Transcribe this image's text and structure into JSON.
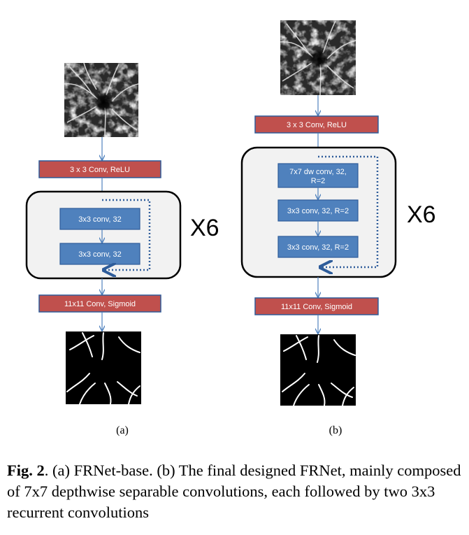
{
  "panel_a": {
    "top_block": "3 x 3 Conv, ReLU",
    "inner_block_1": "3x3 conv, 32",
    "inner_block_2": "3x3 conv, 32",
    "repeat_label": "X6",
    "bottom_block": "11x11 Conv, Sigmoid",
    "sublabel": "(a)"
  },
  "panel_b": {
    "top_block": "3 x 3 Conv, ReLU",
    "inner_block_1_line1": "7x7 dw conv, 32,",
    "inner_block_1_line2": "R=2",
    "inner_block_2": "3x3 conv, 32, R=2",
    "inner_block_3": "3x3 conv, 32, R=2",
    "repeat_label": "X6",
    "bottom_block": "11x11 Conv, Sigmoid",
    "sublabel": "(b)"
  },
  "caption": {
    "label": "Fig. 2",
    "text": ". (a) FRNet-base. (b) The final designed FRNet, mainly composed of 7x7 depthwise separable convolutions, each followed by two 3x3 recurrent convolutions"
  },
  "colors": {
    "red_block": "#c0504d",
    "blue_block": "#4f81bd",
    "arrow": "#4f81bd",
    "container_fill": "#f2f2f2"
  }
}
